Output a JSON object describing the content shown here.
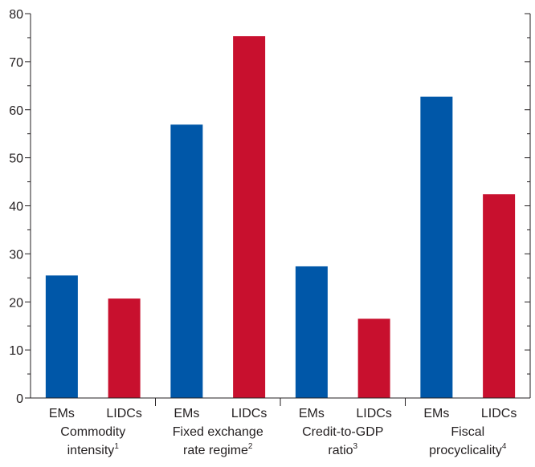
{
  "chart_data": {
    "type": "bar",
    "ylim": [
      0,
      80
    ],
    "y_major_ticks": [
      0,
      10,
      20,
      30,
      40,
      50,
      60,
      70,
      80
    ],
    "y_tick_labels": [
      "0",
      "10",
      "20",
      "30",
      "40",
      "50",
      "60",
      "70",
      "80"
    ],
    "grid": false,
    "legend": null,
    "groups": [
      {
        "label_lines": [
          "Commodity",
          "intensity"
        ],
        "superscript": "1",
        "bars": [
          {
            "category": "EMs",
            "value": 25.5
          },
          {
            "category": "LIDCs",
            "value": 20.7
          }
        ]
      },
      {
        "label_lines": [
          "Fixed exchange",
          "rate regime"
        ],
        "superscript": "2",
        "bars": [
          {
            "category": "EMs",
            "value": 56.9
          },
          {
            "category": "LIDCs",
            "value": 75.3
          }
        ]
      },
      {
        "label_lines": [
          "Credit-to-GDP",
          "ratio"
        ],
        "superscript": "3",
        "bars": [
          {
            "category": "EMs",
            "value": 27.4
          },
          {
            "category": "LIDCs",
            "value": 16.5
          }
        ]
      },
      {
        "label_lines": [
          "Fiscal",
          "procyclicality"
        ],
        "superscript": "4",
        "bars": [
          {
            "category": "EMs",
            "value": 62.7
          },
          {
            "category": "LIDCs",
            "value": 42.4
          }
        ]
      }
    ],
    "colors": {
      "EMs": "#0057a8",
      "LIDCs": "#c8102e"
    }
  }
}
